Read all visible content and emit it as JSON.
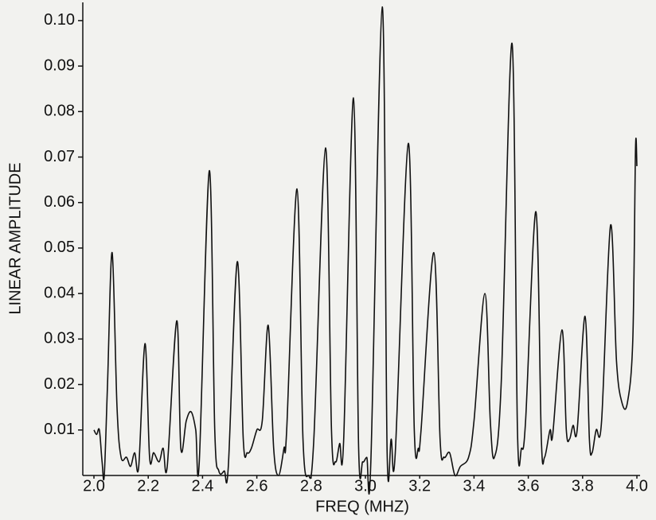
{
  "chart_data": {
    "type": "line",
    "x_label": "FREQ (MHZ)",
    "y_label": "LINEAR AMPLITUDE",
    "xlim": [
      2.0,
      4.0
    ],
    "ylim": [
      0,
      0.104
    ],
    "xticks": [
      {
        "value": 2,
        "label": "2.0"
      },
      2.2,
      2.4,
      2.6,
      2.8,
      {
        "value": 3,
        "label": "3.0"
      },
      3.2,
      3.4,
      3.6,
      3.8,
      {
        "value": 4,
        "label": "4.0"
      }
    ],
    "yticks": [
      0.01,
      0.02,
      0.03,
      0.04,
      0.05,
      0.06,
      0.07,
      0.08,
      0.09,
      {
        "value": 0.1,
        "label": "0.10"
      }
    ],
    "grid": false,
    "series": [
      {
        "color": "#111111",
        "x": [
          2.0,
          2.01,
          2.02,
          2.03,
          2.038,
          2.05,
          2.067,
          2.085,
          2.1,
          2.12,
          2.135,
          2.15,
          2.165,
          2.188,
          2.205,
          2.22,
          2.24,
          2.255,
          2.27,
          2.305,
          2.32,
          2.34,
          2.358,
          2.375,
          2.388,
          2.425,
          2.445,
          2.46,
          2.48,
          2.495,
          2.528,
          2.55,
          2.565,
          2.58,
          2.6,
          2.62,
          2.642,
          2.662,
          2.68,
          2.7,
          2.71,
          2.748,
          2.77,
          2.79,
          2.81,
          2.853,
          2.875,
          2.89,
          2.905,
          2.92,
          2.956,
          2.975,
          2.99,
          3.005,
          3.02,
          3.062,
          3.08,
          3.095,
          3.11,
          3.158,
          3.18,
          3.195,
          3.205,
          3.252,
          3.275,
          3.29,
          3.31,
          3.33,
          3.35,
          3.38,
          3.4,
          3.44,
          3.46,
          3.475,
          3.5,
          3.54,
          3.56,
          3.575,
          3.59,
          3.628,
          3.648,
          3.66,
          3.68,
          3.69,
          3.724,
          3.74,
          3.752,
          3.765,
          3.78,
          3.809,
          3.825,
          3.835,
          3.85,
          3.87,
          3.903,
          3.925,
          3.945,
          3.965,
          3.985,
          3.995,
          4.0
        ],
        "values": [
          0.01,
          0.009,
          0.01,
          0.003,
          0.0,
          0.02,
          0.049,
          0.015,
          0.004,
          0.004,
          0.002,
          0.005,
          0.002,
          0.029,
          0.004,
          0.005,
          0.003,
          0.006,
          0.002,
          0.034,
          0.006,
          0.012,
          0.014,
          0.01,
          0.003,
          0.067,
          0.01,
          0.001,
          0.001,
          0.002,
          0.047,
          0.008,
          0.005,
          0.006,
          0.01,
          0.012,
          0.033,
          0.006,
          0.0,
          0.006,
          0.01,
          0.063,
          0.008,
          0.0,
          0.008,
          0.072,
          0.01,
          0.003,
          0.007,
          0.008,
          0.083,
          0.006,
          0.003,
          0.004,
          0.003,
          0.103,
          0.005,
          0.008,
          0.005,
          0.073,
          0.01,
          0.006,
          0.01,
          0.049,
          0.008,
          0.004,
          0.005,
          0.0,
          0.002,
          0.004,
          0.012,
          0.04,
          0.012,
          0.004,
          0.02,
          0.095,
          0.01,
          0.006,
          0.012,
          0.058,
          0.008,
          0.004,
          0.01,
          0.009,
          0.032,
          0.01,
          0.008,
          0.011,
          0.01,
          0.035,
          0.008,
          0.005,
          0.01,
          0.012,
          0.055,
          0.025,
          0.016,
          0.016,
          0.03,
          0.072,
          0.068
        ]
      }
    ]
  }
}
